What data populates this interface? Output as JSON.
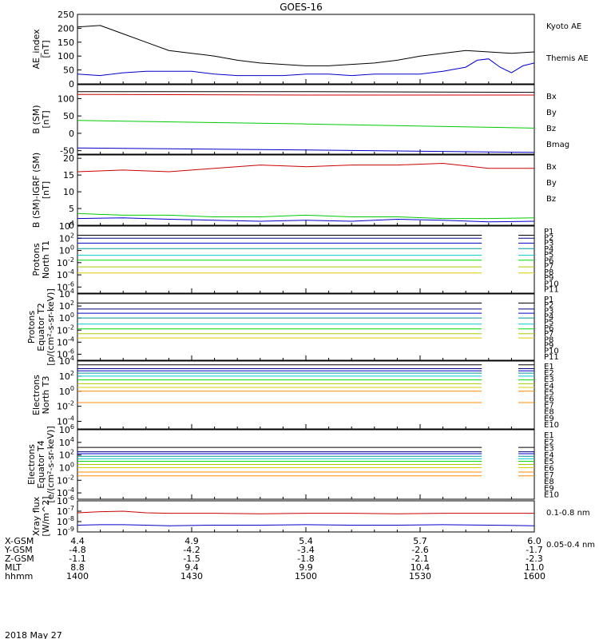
{
  "title": "GOES-16",
  "date_label": "2018 May 27",
  "orbit": {
    "row_labels": [
      "X-GSM",
      "Y-GSM",
      "Z-GSM",
      "MLT",
      "hhmm"
    ],
    "columns": [
      [
        "4.4",
        "-4.8",
        "-1.1",
        "8.8",
        "1400"
      ],
      [
        "4.9",
        "-4.2",
        "-1.5",
        "9.4",
        "1430"
      ],
      [
        "5.4",
        "-3.4",
        "-1.8",
        "9.9",
        "1500"
      ],
      [
        "5.7",
        "-2.6",
        "-2.1",
        "10.4",
        "1530"
      ],
      [
        "6.0",
        "-1.7",
        "-2.3",
        "11.0",
        "1600"
      ]
    ]
  },
  "colors": {
    "black": "#000000",
    "blue": "#0000cc",
    "red": "#cc0000",
    "green": "#00cc00",
    "navy": "#000088",
    "teal": "#009999",
    "cyan": "#00cccc",
    "lime": "#00dd00",
    "yellowgreen": "#aacc00",
    "yellow": "#ddcc00",
    "orange": "#ff8800",
    "darkred": "#aa0000",
    "red2": "#ee0000",
    "gray": "#777777"
  },
  "chart_data": [
    {
      "id": "ae",
      "type": "line",
      "ylabel_lines": [
        "AE_index",
        "[nT]"
      ],
      "ylim": [
        0,
        250
      ],
      "yticks": [
        "0",
        "50",
        "100",
        "150",
        "200",
        "250"
      ],
      "x_hours": [
        14.0,
        16.0
      ],
      "series": [
        {
          "name": "Kyoto AE",
          "color": "#0000cc",
          "x": [
            14.0,
            14.1,
            14.2,
            14.3,
            14.4,
            14.5,
            14.6,
            14.7,
            14.8,
            14.9,
            15.0,
            15.1,
            15.2,
            15.3,
            15.4,
            15.5,
            15.6,
            15.7,
            15.75,
            15.8,
            15.85,
            15.9,
            15.95,
            16.0
          ],
          "y": [
            35,
            30,
            40,
            45,
            45,
            45,
            35,
            30,
            30,
            30,
            35,
            35,
            30,
            35,
            35,
            35,
            45,
            60,
            85,
            90,
            60,
            40,
            65,
            75
          ]
        },
        {
          "name": "Themis AE",
          "color": "#000000",
          "x": [
            14.0,
            14.1,
            14.2,
            14.3,
            14.4,
            14.5,
            14.6,
            14.7,
            14.8,
            14.9,
            15.0,
            15.1,
            15.2,
            15.3,
            15.4,
            15.5,
            15.6,
            15.7,
            15.8,
            15.9,
            16.0
          ],
          "y": [
            205,
            210,
            180,
            150,
            120,
            110,
            100,
            85,
            75,
            70,
            65,
            65,
            70,
            75,
            85,
            100,
            110,
            120,
            115,
            110,
            115
          ]
        }
      ]
    },
    {
      "id": "bsm",
      "type": "line",
      "ylabel_lines": [
        "B (SM)",
        "[nT]"
      ],
      "ylim": [
        -60,
        140
      ],
      "yticks": [
        "-50",
        "0",
        "50",
        "100"
      ],
      "x_hours": [
        14.0,
        16.0
      ],
      "series": [
        {
          "name": "Bx",
          "color": "#0000cc",
          "x": [
            14.0,
            15.0,
            16.0
          ],
          "y": [
            -42,
            -48,
            -55
          ]
        },
        {
          "name": "By",
          "color": "#00cc00",
          "x": [
            14.0,
            15.0,
            16.0
          ],
          "y": [
            37,
            27,
            15
          ]
        },
        {
          "name": "Bz",
          "color": "#cc0000",
          "x": [
            14.0,
            15.0,
            16.0
          ],
          "y": [
            112,
            110,
            110
          ]
        },
        {
          "name": "Bmag",
          "color": "#000000",
          "x": [
            14.0,
            15.0,
            16.0
          ],
          "y": [
            120,
            120,
            118
          ]
        }
      ]
    },
    {
      "id": "bsm_igrf",
      "type": "line",
      "ylabel_lines": [
        "B (SM)-IGRF (SM)",
        "[nT]"
      ],
      "ylim": [
        0,
        21
      ],
      "yticks": [
        "0",
        "5",
        "10",
        "15",
        "20"
      ],
      "x_hours": [
        14.0,
        16.0
      ],
      "series": [
        {
          "name": "Bx",
          "color": "#0000cc",
          "x": [
            14.0,
            14.2,
            14.4,
            14.6,
            14.8,
            15.0,
            15.2,
            15.4,
            15.6,
            15.8,
            16.0
          ],
          "y": [
            2,
            2.2,
            1.8,
            1.5,
            1.2,
            1.5,
            1.2,
            1.8,
            1.5,
            1.0,
            1.2
          ]
        },
        {
          "name": "By",
          "color": "#00cc00",
          "x": [
            14.0,
            14.2,
            14.4,
            14.6,
            14.8,
            15.0,
            15.2,
            15.4,
            15.6,
            15.8,
            16.0
          ],
          "y": [
            3.5,
            3,
            3,
            2.5,
            2.5,
            3,
            2.5,
            2.5,
            2,
            2,
            2.2
          ]
        },
        {
          "name": "Bz",
          "color": "#cc0000",
          "x": [
            14.0,
            14.2,
            14.4,
            14.6,
            14.8,
            15.0,
            15.2,
            15.4,
            15.6,
            15.8,
            16.0
          ],
          "y": [
            16,
            16.5,
            16,
            17,
            18,
            17.5,
            18,
            18,
            18.5,
            17,
            17
          ]
        }
      ]
    },
    {
      "id": "protons_t1",
      "type": "line",
      "log": true,
      "ylabel_lines": [
        "Protons",
        "North T1"
      ],
      "yticks_exp": [
        -6,
        -4,
        -2,
        0,
        2,
        4
      ],
      "ylim_exp": [
        -7,
        4
      ],
      "gap_hours": [
        15.77,
        15.93
      ],
      "x_hours": [
        14.0,
        16.0
      ],
      "legend": [
        "P1",
        "P2",
        "P3",
        "P4",
        "P5",
        "P6",
        "P7",
        "P8",
        "P9",
        "P10",
        "P11"
      ],
      "legend_colors": [
        "#000000",
        "#000000",
        "#000088",
        "#0000cc",
        "#009999",
        "#00cccc",
        "#00dd00",
        "#aacc00",
        "#ddcc00",
        "#ff8800",
        "#cc0000"
      ],
      "levels": [
        2.5,
        2.0,
        1.2,
        0.3,
        -0.8,
        -1.6,
        -2.7,
        -3.7
      ]
    },
    {
      "id": "protons_t2",
      "type": "line",
      "log": true,
      "ylabel_lines": [
        "Protons",
        "Equator T2",
        "[p/(cm²-s-sr-keV)]"
      ],
      "yticks_exp": [
        -6,
        -4,
        -2,
        0,
        2,
        4
      ],
      "ylim_exp": [
        -7,
        4
      ],
      "gap_hours": [
        15.77,
        15.93
      ],
      "x_hours": [
        14.0,
        16.0
      ],
      "legend": [
        "P1",
        "P2",
        "P3",
        "P4",
        "P5",
        "P6",
        "P7",
        "P8",
        "P9",
        "P10",
        "P11"
      ],
      "legend_colors": [
        "#000000",
        "#000000",
        "#000088",
        "#0000cc",
        "#009999",
        "#00cccc",
        "#00dd00",
        "#aacc00",
        "#ddcc00",
        "#ff8800",
        "#cc0000"
      ],
      "levels": [
        2.5,
        1.5,
        0.8,
        0.0,
        -1.0,
        -1.8,
        -2.6,
        -3.3
      ]
    },
    {
      "id": "electrons_t3",
      "type": "line",
      "log": true,
      "ylabel_lines": [
        "Electrons",
        "North T3"
      ],
      "yticks_exp": [
        -4,
        -2,
        0,
        2,
        4
      ],
      "ylim_exp": [
        -5,
        4
      ],
      "gap_hours": [
        15.77,
        15.93
      ],
      "x_hours": [
        14.0,
        16.0
      ],
      "legend": [
        "E1",
        "E2",
        "E3",
        "E4",
        "E5",
        "E6",
        "E7",
        "E8",
        "E9",
        "E10"
      ],
      "legend_colors": [
        "#000000",
        "#000000",
        "#000088",
        "#0000cc",
        "#009999",
        "#00cccc",
        "#00dd00",
        "#aacc00",
        "#ddcc00",
        "#ff8800"
      ],
      "levels": [
        3.5,
        3.0,
        2.7,
        2.4,
        2.0,
        1.5,
        1.0,
        0.5,
        0.0,
        -1.5
      ]
    },
    {
      "id": "electrons_t4",
      "type": "line",
      "log": true,
      "ylabel_lines": [
        "Electrons",
        "Equator T4",
        "[e/(cm²-s-sr-keV)]"
      ],
      "yticks_exp": [
        -4,
        -2,
        0,
        2,
        4,
        6
      ],
      "ylim_exp": [
        -5,
        6
      ],
      "gap_hours": [
        15.77,
        15.93
      ],
      "x_hours": [
        14.0,
        16.0
      ],
      "legend": [
        "E1",
        "E2",
        "E3",
        "E4",
        "E5",
        "E6",
        "E7",
        "E8",
        "E9",
        "E10"
      ],
      "legend_colors": [
        "#000000",
        "#000000",
        "#000088",
        "#0000cc",
        "#009999",
        "#00cccc",
        "#00dd00",
        "#aacc00",
        "#ddcc00",
        "#ff8800"
      ],
      "levels": [
        3.2,
        2.5,
        2.2,
        1.8,
        1.4,
        1.0,
        0.5,
        0.0,
        -0.7,
        -1.3
      ]
    },
    {
      "id": "xray",
      "type": "line",
      "log": true,
      "ylabel_lines": [
        "Xray flux",
        "[W/m^2]"
      ],
      "yticks_exp": [
        -9,
        -8,
        -7,
        -6
      ],
      "ylim_exp": [
        -9,
        -6
      ],
      "x_hours": [
        14.0,
        16.0
      ],
      "series": [
        {
          "name": "0.1-0.8 nm",
          "color": "#cc0000",
          "x": [
            14.0,
            14.1,
            14.2,
            14.3,
            14.4,
            14.6,
            14.8,
            15.0,
            15.2,
            15.4,
            15.6,
            15.8,
            16.0
          ],
          "y_exp": [
            -7.15,
            -7.05,
            -7.0,
            -7.15,
            -7.2,
            -7.2,
            -7.25,
            -7.2,
            -7.2,
            -7.25,
            -7.2,
            -7.2,
            -7.2
          ]
        },
        {
          "name": "0.05-0.4 nm",
          "color": "#0000cc",
          "x": [
            14.0,
            14.1,
            14.2,
            14.3,
            14.4,
            14.6,
            14.8,
            15.0,
            15.2,
            15.4,
            15.6,
            15.8,
            16.0
          ],
          "y_exp": [
            -8.35,
            -8.3,
            -8.3,
            -8.35,
            -8.4,
            -8.35,
            -8.35,
            -8.3,
            -8.35,
            -8.35,
            -8.3,
            -8.35,
            -8.4
          ]
        }
      ]
    }
  ]
}
